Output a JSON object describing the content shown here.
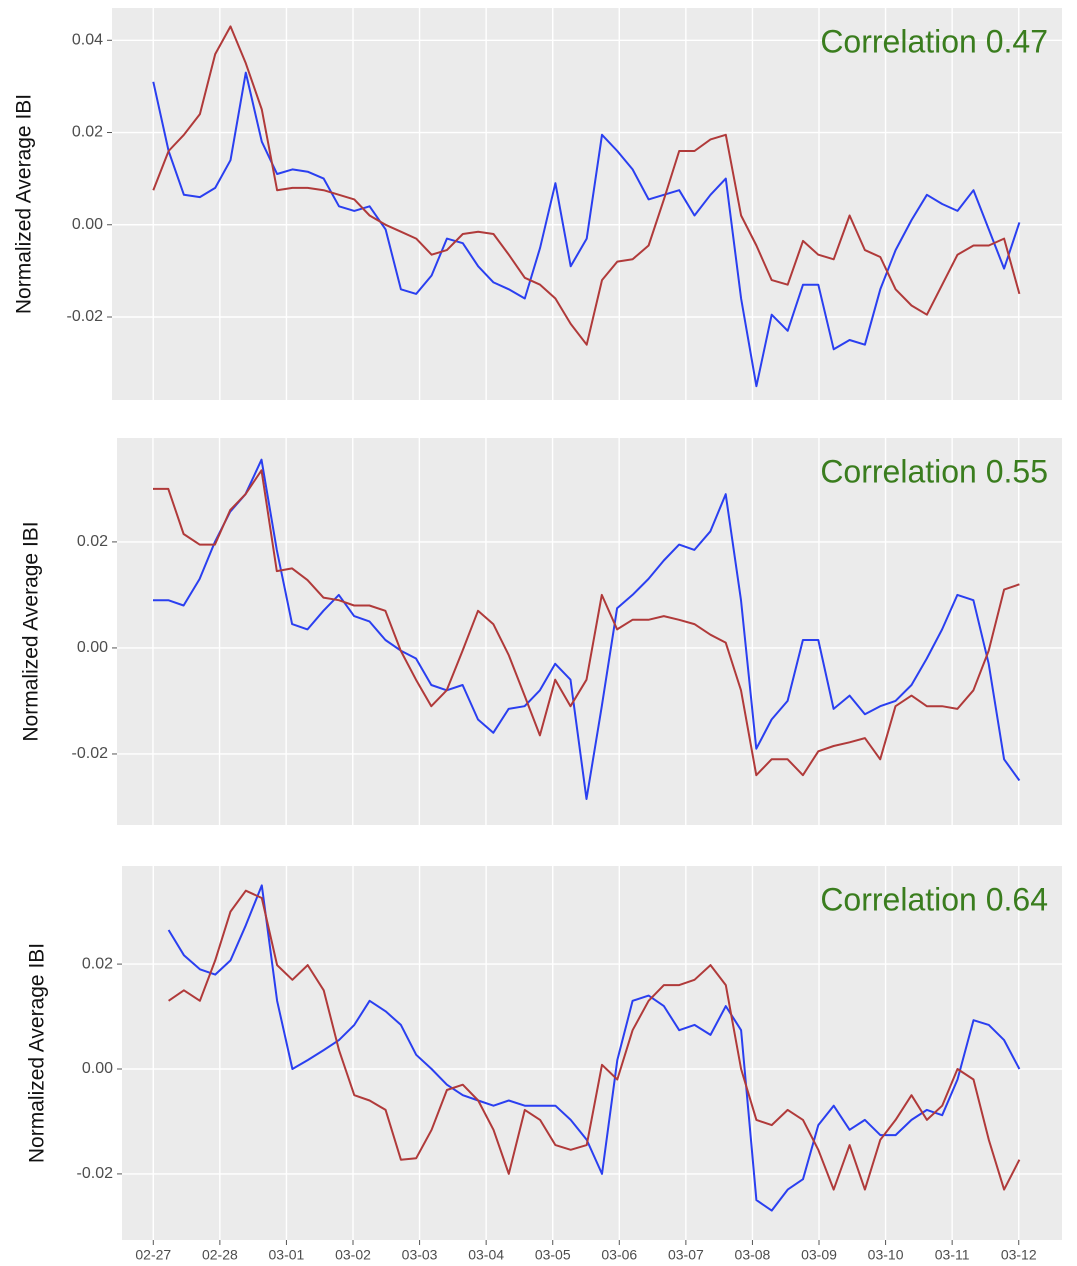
{
  "chart_data": [
    {
      "type": "line",
      "ylabel": "Normalized Average IBI",
      "annotation": "Correlation 0.47",
      "grid": true,
      "x": [
        0,
        0.23,
        0.46,
        0.7,
        0.93,
        1.16,
        1.39,
        1.63,
        1.86,
        2.09,
        2.32,
        2.56,
        2.79,
        3.02,
        3.25,
        3.49,
        3.72,
        3.95,
        4.18,
        4.41,
        4.65,
        4.88,
        5.11,
        5.34,
        5.58,
        5.81,
        6.04,
        6.27,
        6.51,
        6.74,
        6.97,
        7.2,
        7.44,
        7.67,
        7.9,
        8.13,
        8.37,
        8.6,
        8.83,
        9.06,
        9.29,
        9.53,
        9.76,
        9.99,
        10.22,
        10.46,
        10.69,
        10.92,
        11.15,
        11.39,
        11.62,
        11.85,
        12.08,
        12.32,
        12.55,
        12.78,
        13.01
      ],
      "xlim": [
        -0.62,
        13.65
      ],
      "ylim": [
        -0.038,
        0.047
      ],
      "yticks": [
        -0.02,
        {
          "value": 0,
          "label": "0.00"
        },
        0.02,
        0.04
      ],
      "series": [
        {
          "color": "#2a3ff0",
          "values": [
            0.031,
            0.016,
            0.0065,
            0.006,
            0.008,
            0.014,
            0.033,
            0.018,
            0.011,
            0.012,
            0.0115,
            0.01,
            0.004,
            0.003,
            0.004,
            -0.001,
            -0.014,
            -0.015,
            -0.011,
            -0.003,
            -0.004,
            -0.009,
            -0.0125,
            -0.014,
            -0.016,
            -0.005,
            0.009,
            -0.009,
            -0.003,
            0.0195,
            0.016,
            0.012,
            0.0055,
            0.0065,
            0.0075,
            0.002,
            0.0065,
            0.01,
            -0.016,
            -0.035,
            -0.0195,
            -0.023,
            -0.013,
            -0.013,
            -0.027,
            -0.025,
            -0.026,
            -0.014,
            -0.0055,
            0.001,
            0.0065,
            0.0045,
            0.003,
            0.0075,
            -0.001,
            -0.0095,
            0.0005
          ]
        },
        {
          "color": "#b03a3a",
          "values": [
            0.0075,
            0.016,
            0.0195,
            0.024,
            0.037,
            0.043,
            0.035,
            0.025,
            0.0075,
            0.008,
            0.008,
            0.0075,
            0.0065,
            0.0055,
            0.002,
            0,
            -0.0015,
            -0.003,
            -0.0065,
            -0.0055,
            -0.002,
            -0.0015,
            -0.002,
            -0.0065,
            -0.0115,
            -0.013,
            -0.016,
            -0.0215,
            -0.026,
            -0.012,
            -0.008,
            -0.0075,
            -0.0045,
            0.0055,
            0.016,
            0.016,
            0.0185,
            0.0195,
            0.002,
            -0.0045,
            -0.012,
            -0.013,
            -0.0035,
            -0.0065,
            -0.0075,
            0.002,
            -0.0055,
            -0.007,
            -0.014,
            -0.0175,
            -0.0195,
            -0.013,
            -0.0065,
            -0.0045,
            -0.0045,
            -0.003,
            -0.015
          ]
        }
      ]
    },
    {
      "type": "line",
      "ylabel": "Normalized Average IBI",
      "annotation": "Correlation 0.55",
      "grid": true,
      "x": [
        0,
        0.23,
        0.46,
        0.7,
        0.93,
        1.16,
        1.39,
        1.63,
        1.86,
        2.09,
        2.32,
        2.56,
        2.79,
        3.02,
        3.25,
        3.49,
        3.72,
        3.95,
        4.18,
        4.41,
        4.65,
        4.88,
        5.11,
        5.34,
        5.58,
        5.81,
        6.04,
        6.27,
        6.51,
        6.74,
        6.97,
        7.2,
        7.44,
        7.67,
        7.9,
        8.13,
        8.37,
        8.6,
        8.83,
        9.06,
        9.29,
        9.53,
        9.76,
        9.99,
        10.22,
        10.46,
        10.69,
        10.92,
        11.15,
        11.39,
        11.62,
        11.85,
        12.08,
        12.32,
        12.55,
        12.78,
        13.01
      ],
      "xlim": [
        -0.54,
        13.65
      ],
      "ylim": [
        -0.0334,
        0.0396
      ],
      "yticks": [
        -0.02,
        {
          "value": 0,
          "label": "0.00"
        },
        0.02
      ],
      "series": [
        {
          "color": "#2a3ff0",
          "values": [
            0.009,
            0.009,
            0.008,
            0.013,
            0.02,
            0.0257,
            0.029,
            0.0355,
            0.0185,
            0.0045,
            0.0035,
            0.007,
            0.01,
            0.006,
            0.005,
            0.0015,
            -0.0005,
            -0.002,
            -0.007,
            -0.008,
            -0.007,
            -0.0135,
            -0.016,
            -0.0115,
            -0.011,
            -0.008,
            -0.003,
            -0.006,
            -0.0285,
            -0.011,
            0.0075,
            0.01,
            0.013,
            0.0165,
            0.0195,
            0.0185,
            0.022,
            0.029,
            0.009,
            -0.019,
            -0.0135,
            -0.01,
            0.0015,
            0.0015,
            -0.0115,
            -0.009,
            -0.0125,
            -0.011,
            -0.01,
            -0.007,
            -0.002,
            0.0035,
            0.01,
            0.009,
            -0.003,
            -0.021,
            -0.025
          ]
        },
        {
          "color": "#b03a3a",
          "values": [
            0.03,
            0.03,
            0.0215,
            0.0195,
            0.0195,
            0.026,
            0.029,
            0.0335,
            0.0145,
            0.015,
            0.0128,
            0.0095,
            0.009,
            0.008,
            0.008,
            0.007,
            -0.0005,
            -0.006,
            -0.011,
            -0.008,
            -0.0005,
            0.007,
            0.0045,
            -0.0013,
            -0.009,
            -0.0165,
            -0.006,
            -0.011,
            -0.006,
            0.01,
            0.0035,
            0.0053,
            0.0053,
            0.006,
            0.0053,
            0.0045,
            0.0025,
            0.001,
            -0.008,
            -0.024,
            -0.021,
            -0.021,
            -0.024,
            -0.0195,
            -0.0185,
            -0.0178,
            -0.017,
            -0.021,
            -0.011,
            -0.009,
            -0.011,
            -0.011,
            -0.0115,
            -0.008,
            -0.0005,
            0.011,
            0.012
          ]
        }
      ]
    },
    {
      "type": "line",
      "ylabel": "Normalized Average IBI",
      "annotation": "Correlation 0.64",
      "grid": true,
      "x": [
        0,
        0.23,
        0.46,
        0.7,
        0.93,
        1.16,
        1.39,
        1.63,
        1.86,
        2.09,
        2.32,
        2.56,
        2.79,
        3.02,
        3.25,
        3.49,
        3.72,
        3.95,
        4.18,
        4.41,
        4.65,
        4.88,
        5.11,
        5.34,
        5.58,
        5.81,
        6.04,
        6.27,
        6.51,
        6.74,
        6.97,
        7.2,
        7.44,
        7.67,
        7.9,
        8.13,
        8.37,
        8.6,
        8.83,
        9.06,
        9.29,
        9.53,
        9.76,
        9.99,
        10.22,
        10.46,
        10.69,
        10.92,
        11.15,
        11.39,
        11.62,
        11.85,
        12.08,
        12.32,
        12.55,
        12.78,
        13.01
      ],
      "xlim": [
        -0.47,
        13.65
      ],
      "ylim": [
        -0.0326,
        0.0387
      ],
      "xticks": [
        {
          "value": 0,
          "label": "02-27"
        },
        {
          "value": 1,
          "label": "02-28"
        },
        {
          "value": 2,
          "label": "03-01"
        },
        {
          "value": 3,
          "label": "03-02"
        },
        {
          "value": 4,
          "label": "03-03"
        },
        {
          "value": 5,
          "label": "03-04"
        },
        {
          "value": 6,
          "label": "03-05"
        },
        {
          "value": 7,
          "label": "03-06"
        },
        {
          "value": 8,
          "label": "03-07"
        },
        {
          "value": 9,
          "label": "03-08"
        },
        {
          "value": 10,
          "label": "03-09"
        },
        {
          "value": 11,
          "label": "03-10"
        },
        {
          "value": 12,
          "label": "03-11"
        },
        {
          "value": 13,
          "label": "03-12"
        }
      ],
      "yticks": [
        -0.02,
        {
          "value": 0,
          "label": "0.00"
        },
        0.02
      ],
      "series": [
        {
          "color": "#2a3ff0",
          "values": [
            null,
            0.0265,
            0.0217,
            0.019,
            0.018,
            0.0207,
            0.0274,
            0.035,
            0.013,
            0,
            0.0017,
            0.0036,
            0.0055,
            0.0084,
            0.013,
            0.011,
            0.0084,
            0.0027,
            0,
            -0.003,
            -0.005,
            -0.006,
            -0.007,
            -0.006,
            -0.007,
            -0.007,
            -0.007,
            -0.0097,
            -0.0135,
            -0.02,
            0.0017,
            0.013,
            0.014,
            0.012,
            0.0074,
            0.0084,
            0.0065,
            0.012,
            0.0074,
            -0.025,
            -0.027,
            -0.023,
            -0.021,
            -0.0107,
            -0.007,
            -0.0116,
            -0.0097,
            -0.0126,
            -0.0126,
            -0.0097,
            -0.0078,
            -0.0088,
            -0.002,
            0.0093,
            0.0084,
            0.0055,
            0
          ]
        },
        {
          "color": "#b03a3a",
          "values": [
            null,
            0.013,
            0.015,
            0.013,
            0.0207,
            0.03,
            0.034,
            0.0326,
            0.0198,
            0.017,
            0.0198,
            0.015,
            0.0036,
            -0.005,
            -0.006,
            -0.0078,
            -0.0173,
            -0.017,
            -0.0116,
            -0.004,
            -0.003,
            -0.006,
            -0.0116,
            -0.02,
            -0.0078,
            -0.0097,
            -0.0145,
            -0.0154,
            -0.0145,
            0.0008,
            -0.002,
            0.0074,
            0.013,
            0.016,
            0.016,
            0.017,
            0.0198,
            0.016,
            0,
            -0.0097,
            -0.0107,
            -0.0078,
            -0.0097,
            -0.0154,
            -0.023,
            -0.0145,
            -0.023,
            -0.0135,
            -0.0097,
            -0.005,
            -0.0097,
            -0.007,
            0,
            -0.002,
            -0.0135,
            -0.023,
            -0.0173
          ]
        }
      ]
    }
  ]
}
